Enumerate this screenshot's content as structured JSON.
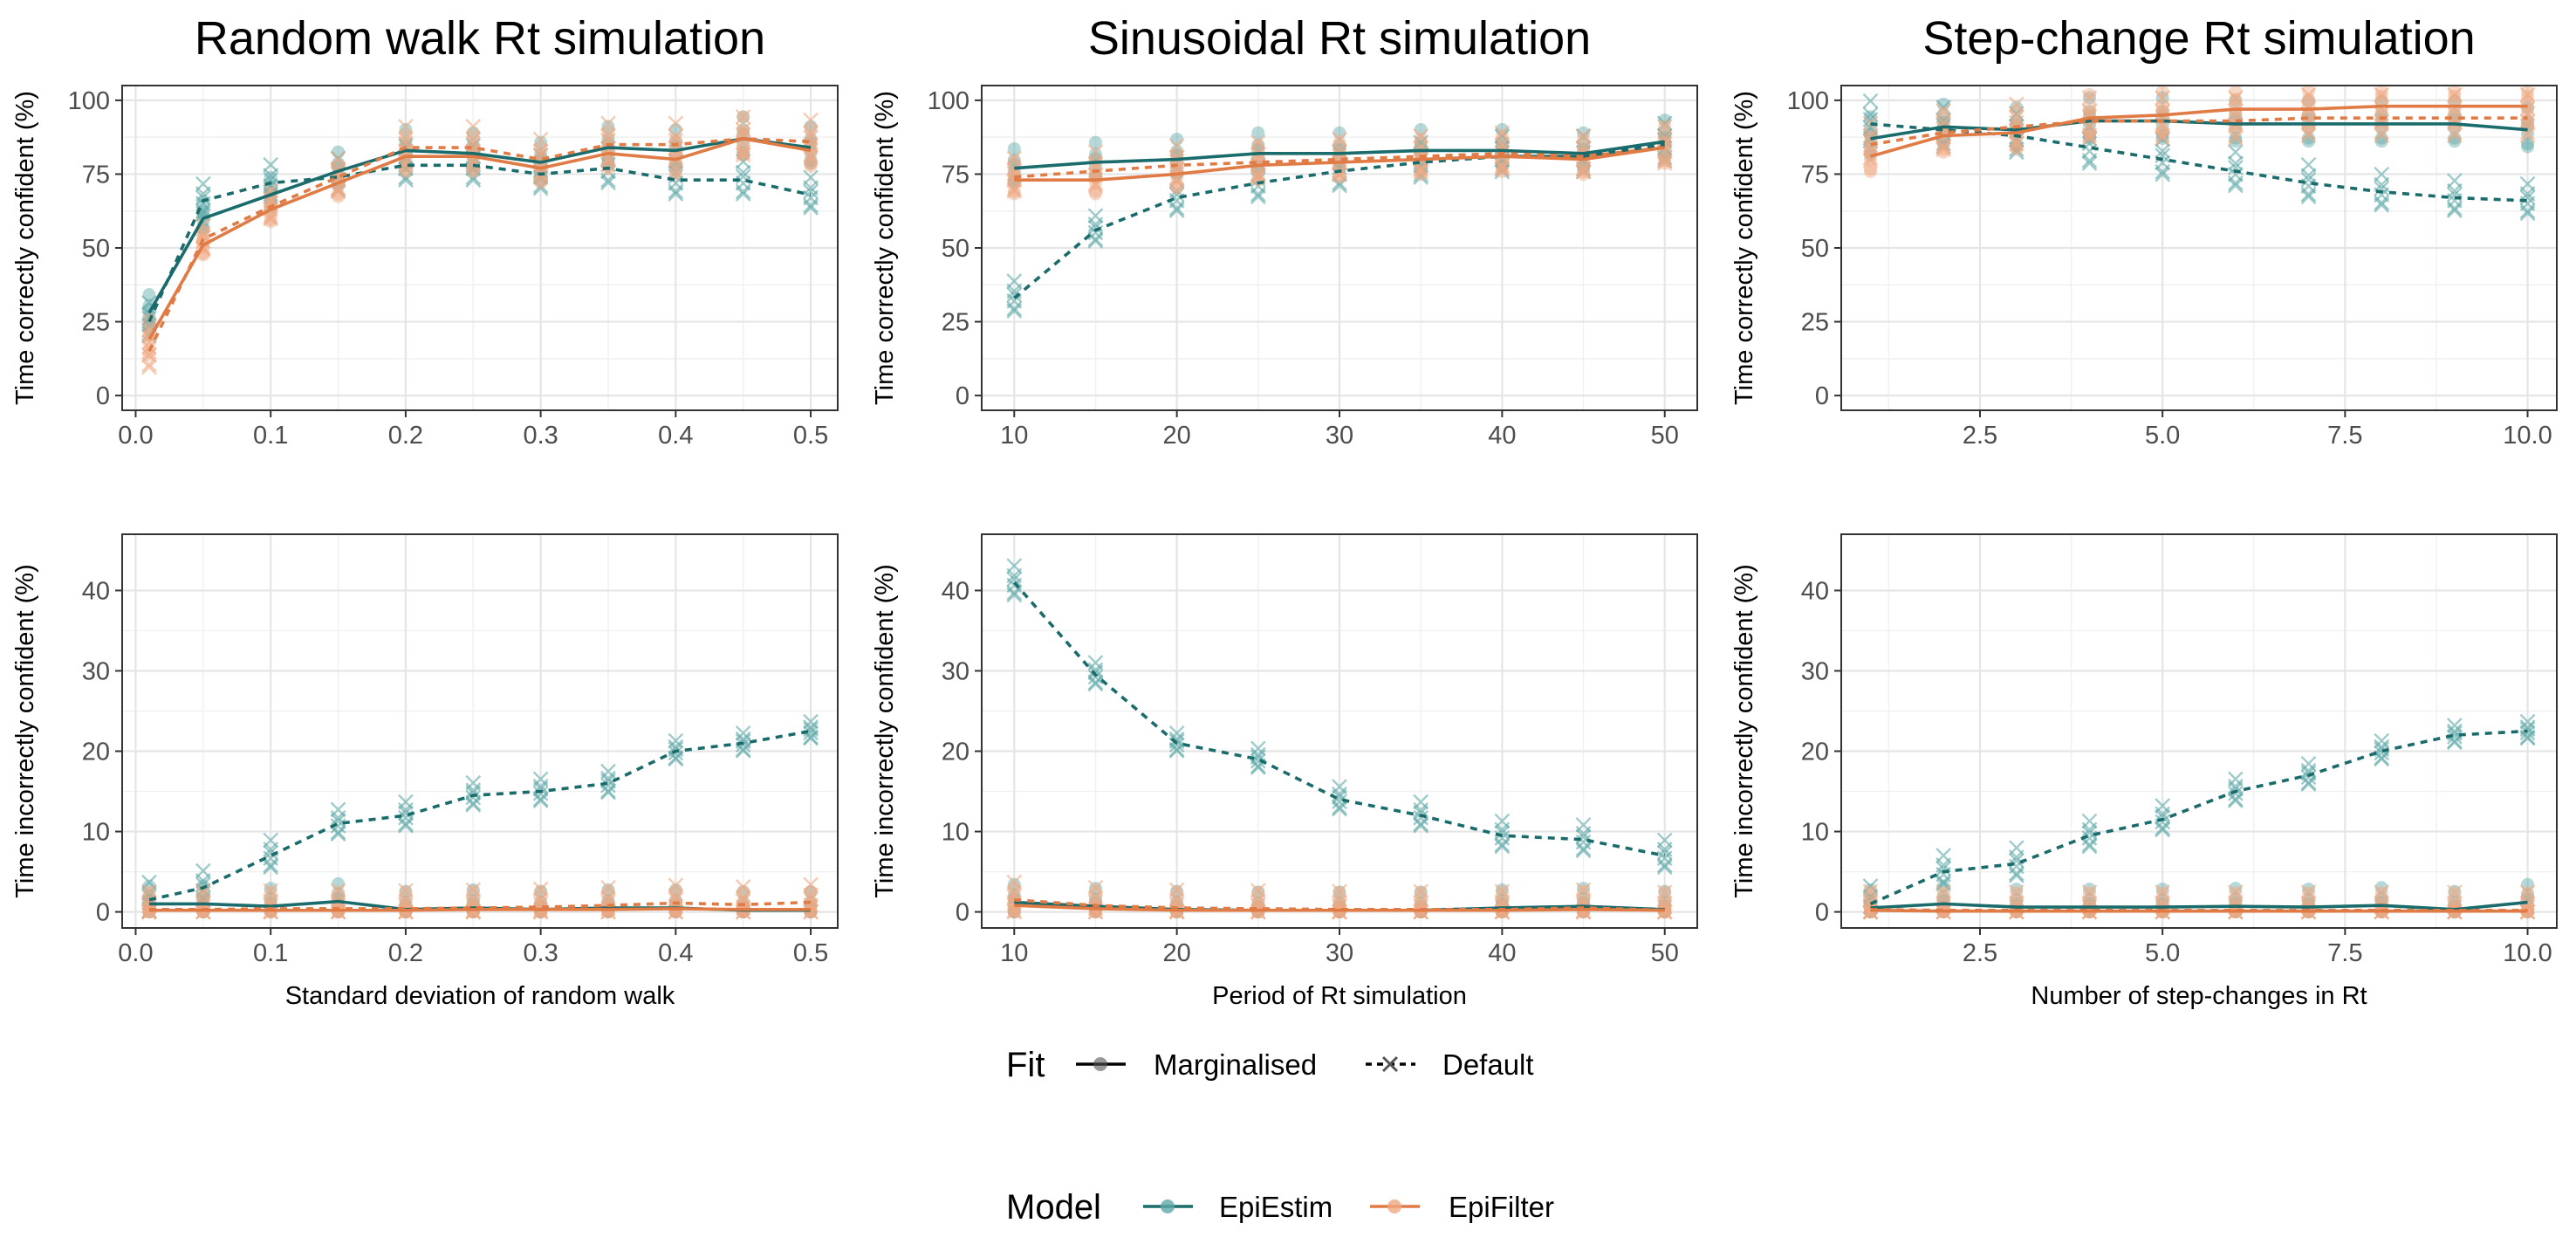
{
  "colors": {
    "EpiEstim": "#1a6b6b",
    "EpiFilter": "#e07b45",
    "EpiEstim_point": "#5fa8a8",
    "EpiFilter_point": "#f0a882"
  },
  "chart_data": [
    {
      "type": "line",
      "panel": "top-left",
      "title": "Random walk Rt simulation",
      "xlabel": "",
      "ylabel": "Time correctly confident (%)",
      "xlim": [
        -0.01,
        0.52
      ],
      "ylim": [
        -5,
        105
      ],
      "xticks": [
        "0.0",
        "0.1",
        "0.2",
        "0.3",
        "0.4",
        "0.5"
      ],
      "yticks": [
        "0",
        "25",
        "50",
        "75",
        "100"
      ],
      "grid": true,
      "x": [
        0.01,
        0.05,
        0.1,
        0.15,
        0.2,
        0.25,
        0.3,
        0.35,
        0.4,
        0.45,
        0.5
      ],
      "series": [
        {
          "model": "EpiEstim",
          "fit": "Marginalised",
          "values": [
            28,
            60,
            68,
            76,
            83,
            82,
            79,
            84,
            83,
            87,
            84
          ]
        },
        {
          "model": "EpiEstim",
          "fit": "Default",
          "values": [
            25,
            66,
            72,
            74,
            78,
            78,
            75,
            77,
            73,
            73,
            68
          ]
        },
        {
          "model": "EpiFilter",
          "fit": "Marginalised",
          "values": [
            19,
            51,
            63,
            72,
            81,
            81,
            77,
            82,
            80,
            87,
            83
          ]
        },
        {
          "model": "EpiFilter",
          "fit": "Default",
          "values": [
            15,
            53,
            64,
            74,
            84,
            84,
            80,
            85,
            85,
            87,
            86
          ]
        }
      ]
    },
    {
      "type": "line",
      "panel": "top-middle",
      "title": "Sinusoidal Rt simulation",
      "xlabel": "",
      "ylabel": "Time correctly confident (%)",
      "xlim": [
        8,
        52
      ],
      "ylim": [
        -5,
        105
      ],
      "xticks": [
        "10",
        "20",
        "30",
        "40",
        "50"
      ],
      "yticks": [
        "0",
        "25",
        "50",
        "75",
        "100"
      ],
      "grid": true,
      "x": [
        10,
        15,
        20,
        25,
        30,
        35,
        40,
        45,
        50
      ],
      "series": [
        {
          "model": "EpiEstim",
          "fit": "Marginalised",
          "values": [
            77,
            79,
            80,
            82,
            82,
            83,
            83,
            82,
            86
          ]
        },
        {
          "model": "EpiEstim",
          "fit": "Default",
          "values": [
            33,
            56,
            67,
            72,
            76,
            79,
            81,
            81,
            85
          ]
        },
        {
          "model": "EpiFilter",
          "fit": "Marginalised",
          "values": [
            73,
            73,
            75,
            78,
            79,
            80,
            81,
            80,
            84
          ]
        },
        {
          "model": "EpiFilter",
          "fit": "Default",
          "values": [
            74,
            76,
            78,
            79,
            80,
            81,
            82,
            81,
            84
          ]
        }
      ]
    },
    {
      "type": "line",
      "panel": "top-right",
      "title": "Step-change Rt simulation",
      "xlabel": "",
      "ylabel": "Time correctly confident (%)",
      "xlim": [
        0.6,
        10.4
      ],
      "ylim": [
        -5,
        105
      ],
      "xticks": [
        "2.5",
        "5.0",
        "7.5",
        "10.0"
      ],
      "yticks": [
        "0",
        "25",
        "50",
        "75",
        "100"
      ],
      "grid": true,
      "x": [
        1,
        2,
        3,
        4,
        5,
        6,
        7,
        8,
        9,
        10
      ],
      "series": [
        {
          "model": "EpiEstim",
          "fit": "Marginalised",
          "values": [
            87,
            91,
            90,
            93,
            93,
            92,
            92,
            92,
            92,
            90
          ]
        },
        {
          "model": "EpiEstim",
          "fit": "Default",
          "values": [
            92,
            90,
            88,
            84,
            80,
            76,
            72,
            69,
            67,
            66
          ]
        },
        {
          "model": "EpiFilter",
          "fit": "Marginalised",
          "values": [
            81,
            88,
            89,
            94,
            95,
            97,
            97,
            98,
            98,
            98
          ]
        },
        {
          "model": "EpiFilter",
          "fit": "Default",
          "values": [
            85,
            89,
            91,
            93,
            93,
            93,
            94,
            94,
            94,
            94
          ]
        }
      ]
    },
    {
      "type": "line",
      "panel": "bottom-left",
      "title": "",
      "xlabel": "Standard deviation of random walk",
      "ylabel": "Time incorrectly confident (%)",
      "xlim": [
        -0.01,
        0.52
      ],
      "ylim": [
        -2,
        47
      ],
      "xticks": [
        "0.0",
        "0.1",
        "0.2",
        "0.3",
        "0.4",
        "0.5"
      ],
      "yticks": [
        "0",
        "10",
        "20",
        "30",
        "40"
      ],
      "grid": true,
      "x": [
        0.01,
        0.05,
        0.1,
        0.15,
        0.2,
        0.25,
        0.3,
        0.35,
        0.4,
        0.45,
        0.5
      ],
      "series": [
        {
          "model": "EpiEstim",
          "fit": "Marginalised",
          "values": [
            1,
            1,
            0.7,
            1.3,
            0.3,
            0.5,
            0.3,
            0.5,
            0.5,
            0.2,
            0.2
          ]
        },
        {
          "model": "EpiEstim",
          "fit": "Default",
          "values": [
            1.5,
            3,
            7,
            11,
            12,
            14.5,
            15,
            16,
            20,
            21,
            22.5
          ]
        },
        {
          "model": "EpiFilter",
          "fit": "Marginalised",
          "values": [
            0.2,
            0.2,
            0.2,
            0.2,
            0.2,
            0.3,
            0.3,
            0.3,
            0.4,
            0.3,
            0.3
          ]
        },
        {
          "model": "EpiFilter",
          "fit": "Default",
          "values": [
            0.3,
            0.3,
            0.4,
            0.4,
            0.4,
            0.5,
            0.6,
            0.8,
            1.1,
            0.9,
            1.2
          ]
        }
      ]
    },
    {
      "type": "line",
      "panel": "bottom-middle",
      "title": "",
      "xlabel": "Period of Rt simulation",
      "ylabel": "Time incorrectly confident (%)",
      "xlim": [
        8,
        52
      ],
      "ylim": [
        -2,
        47
      ],
      "xticks": [
        "10",
        "20",
        "30",
        "40",
        "50"
      ],
      "yticks": [
        "0",
        "10",
        "20",
        "30",
        "40"
      ],
      "grid": true,
      "x": [
        10,
        15,
        20,
        25,
        30,
        35,
        40,
        45,
        50
      ],
      "series": [
        {
          "model": "EpiEstim",
          "fit": "Marginalised",
          "values": [
            1.2,
            0.7,
            0.3,
            0.2,
            0.2,
            0.2,
            0.5,
            0.7,
            0.3
          ]
        },
        {
          "model": "EpiEstim",
          "fit": "Default",
          "values": [
            41,
            29.5,
            21,
            19,
            14,
            12,
            9.5,
            9,
            7
          ]
        },
        {
          "model": "EpiFilter",
          "fit": "Marginalised",
          "values": [
            0.8,
            0.4,
            0.2,
            0.2,
            0.2,
            0.2,
            0.2,
            0.3,
            0.2
          ]
        },
        {
          "model": "EpiFilter",
          "fit": "Default",
          "values": [
            1.5,
            0.8,
            0.5,
            0.4,
            0.3,
            0.3,
            0.3,
            0.5,
            0.2
          ]
        }
      ]
    },
    {
      "type": "line",
      "panel": "bottom-right",
      "title": "",
      "xlabel": "Number of step-changes in Rt",
      "ylabel": "Time incorrectly confident (%)",
      "xlim": [
        0.6,
        10.4
      ],
      "ylim": [
        -2,
        47
      ],
      "xticks": [
        "2.5",
        "5.0",
        "7.5",
        "10.0"
      ],
      "yticks": [
        "0",
        "10",
        "20",
        "30",
        "40"
      ],
      "grid": true,
      "x": [
        1,
        2,
        3,
        4,
        5,
        6,
        7,
        8,
        9,
        10
      ],
      "series": [
        {
          "model": "EpiEstim",
          "fit": "Marginalised",
          "values": [
            0.5,
            1,
            0.6,
            0.6,
            0.6,
            0.7,
            0.6,
            0.8,
            0.3,
            1.2
          ]
        },
        {
          "model": "EpiEstim",
          "fit": "Default",
          "values": [
            1,
            5,
            6,
            9.5,
            11.5,
            15,
            17,
            20,
            22,
            22.5
          ]
        },
        {
          "model": "EpiFilter",
          "fit": "Marginalised",
          "values": [
            0.2,
            0.1,
            0.1,
            0.1,
            0.1,
            0.1,
            0.1,
            0.1,
            0.1,
            0.1
          ]
        },
        {
          "model": "EpiFilter",
          "fit": "Default",
          "values": [
            0.3,
            0.2,
            0.2,
            0.2,
            0.2,
            0.2,
            0.2,
            0.2,
            0.2,
            0.2
          ]
        }
      ]
    }
  ],
  "legend_fit": {
    "title": "Fit",
    "items": [
      "Marginalised",
      "Default"
    ]
  },
  "legend_model": {
    "title": "Model",
    "items": [
      "EpiEstim",
      "EpiFilter"
    ]
  }
}
